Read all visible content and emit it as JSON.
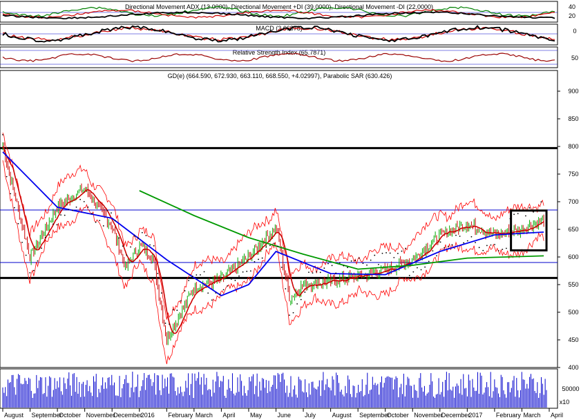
{
  "chart_data": {
    "type": "line",
    "title": "GD(e) (664.590, 672.930, 663.110, 668.550, +4.02997), Parabolic SAR (630.426)",
    "indicator_panels": [
      {
        "name": "adx",
        "title": "Directional Movement ADX (13.0000), Directional Movement +DI (39.0000), Directional Movement -DI (22.0000)",
        "ticks": [
          "40",
          "20"
        ],
        "series_colors": {
          "adx": "#000000",
          "plus_di": "#008000",
          "minus_di": "#cc0000"
        }
      },
      {
        "name": "macd",
        "title": "MACD (3.66878)",
        "ticks": [
          "0"
        ],
        "series_colors": {
          "macd": "#000000",
          "signal": "#cc0000"
        }
      },
      {
        "name": "rsi",
        "title": "Relative Strength Index (65.7871)",
        "ticks": [
          "50"
        ],
        "series_colors": {
          "rsi": "#990000"
        }
      }
    ],
    "y_axis": {
      "ticks": [
        "900",
        "850",
        "800",
        "750",
        "700",
        "650",
        "600",
        "550",
        "500",
        "450",
        "400"
      ],
      "range": [
        400,
        900
      ]
    },
    "x_axis": {
      "labels": [
        "August",
        "September",
        "October",
        "November",
        "December",
        "2016",
        "February",
        "March",
        "April",
        "May",
        "June",
        "July",
        "August",
        "September",
        "October",
        "November",
        "December",
        "2017",
        "February",
        "March",
        "April"
      ]
    },
    "price_key_points": [
      {
        "x": 0,
        "y": 800
      },
      {
        "x": 1,
        "y": 600
      },
      {
        "x": 2,
        "y": 690
      },
      {
        "x": 3,
        "y": 725
      },
      {
        "x": 4,
        "y": 655
      },
      {
        "x": 4.5,
        "y": 580
      },
      {
        "x": 5,
        "y": 620
      },
      {
        "x": 5.5,
        "y": 600
      },
      {
        "x": 6,
        "y": 450
      },
      {
        "x": 7,
        "y": 545
      },
      {
        "x": 8,
        "y": 560
      },
      {
        "x": 9,
        "y": 600
      },
      {
        "x": 10,
        "y": 655
      },
      {
        "x": 10.5,
        "y": 525
      },
      {
        "x": 11,
        "y": 550
      },
      {
        "x": 12,
        "y": 555
      },
      {
        "x": 13,
        "y": 565
      },
      {
        "x": 14,
        "y": 575
      },
      {
        "x": 15,
        "y": 595
      },
      {
        "x": 16,
        "y": 640
      },
      {
        "x": 17,
        "y": 660
      },
      {
        "x": 18,
        "y": 640
      },
      {
        "x": 19,
        "y": 650
      },
      {
        "x": 19.8,
        "y": 668.55
      }
    ],
    "moving_average_blue": [
      {
        "x": 0,
        "y": 790
      },
      {
        "x": 2,
        "y": 690
      },
      {
        "x": 4,
        "y": 670
      },
      {
        "x": 6,
        "y": 595
      },
      {
        "x": 8,
        "y": 530
      },
      {
        "x": 9,
        "y": 550
      },
      {
        "x": 10,
        "y": 610
      },
      {
        "x": 12,
        "y": 570
      },
      {
        "x": 14,
        "y": 568
      },
      {
        "x": 16,
        "y": 610
      },
      {
        "x": 18,
        "y": 640
      },
      {
        "x": 19.8,
        "y": 645
      }
    ],
    "moving_average_green": [
      {
        "x": 5,
        "y": 720
      },
      {
        "x": 7,
        "y": 675
      },
      {
        "x": 9,
        "y": 635
      },
      {
        "x": 11,
        "y": 605
      },
      {
        "x": 13,
        "y": 578
      },
      {
        "x": 15,
        "y": 585
      },
      {
        "x": 17,
        "y": 598
      },
      {
        "x": 19.8,
        "y": 602
      }
    ],
    "horizontal_levels": [
      {
        "value": 797,
        "color": "#000000",
        "style": "thick"
      },
      {
        "value": 562,
        "color": "#000000",
        "style": "thick"
      },
      {
        "value": 685,
        "color": "#0000cc",
        "style": "thin"
      },
      {
        "value": 590,
        "color": "#0000cc",
        "style": "thin"
      }
    ],
    "highlight_box": {
      "x0": 18.6,
      "x1": 19.9,
      "y0": 612,
      "y1": 684
    },
    "volume": {
      "tick": "50000",
      "scale_label": "x10",
      "color": "#0000cc"
    },
    "grid": false,
    "colors": {
      "price_up": "#00aa00",
      "price_down": "#cc0000",
      "bands": "#ff0000",
      "ma_fast": "#cc0000",
      "ma_mid": "#0000ee",
      "ma_slow": "#009900",
      "sar": "#000000"
    }
  }
}
